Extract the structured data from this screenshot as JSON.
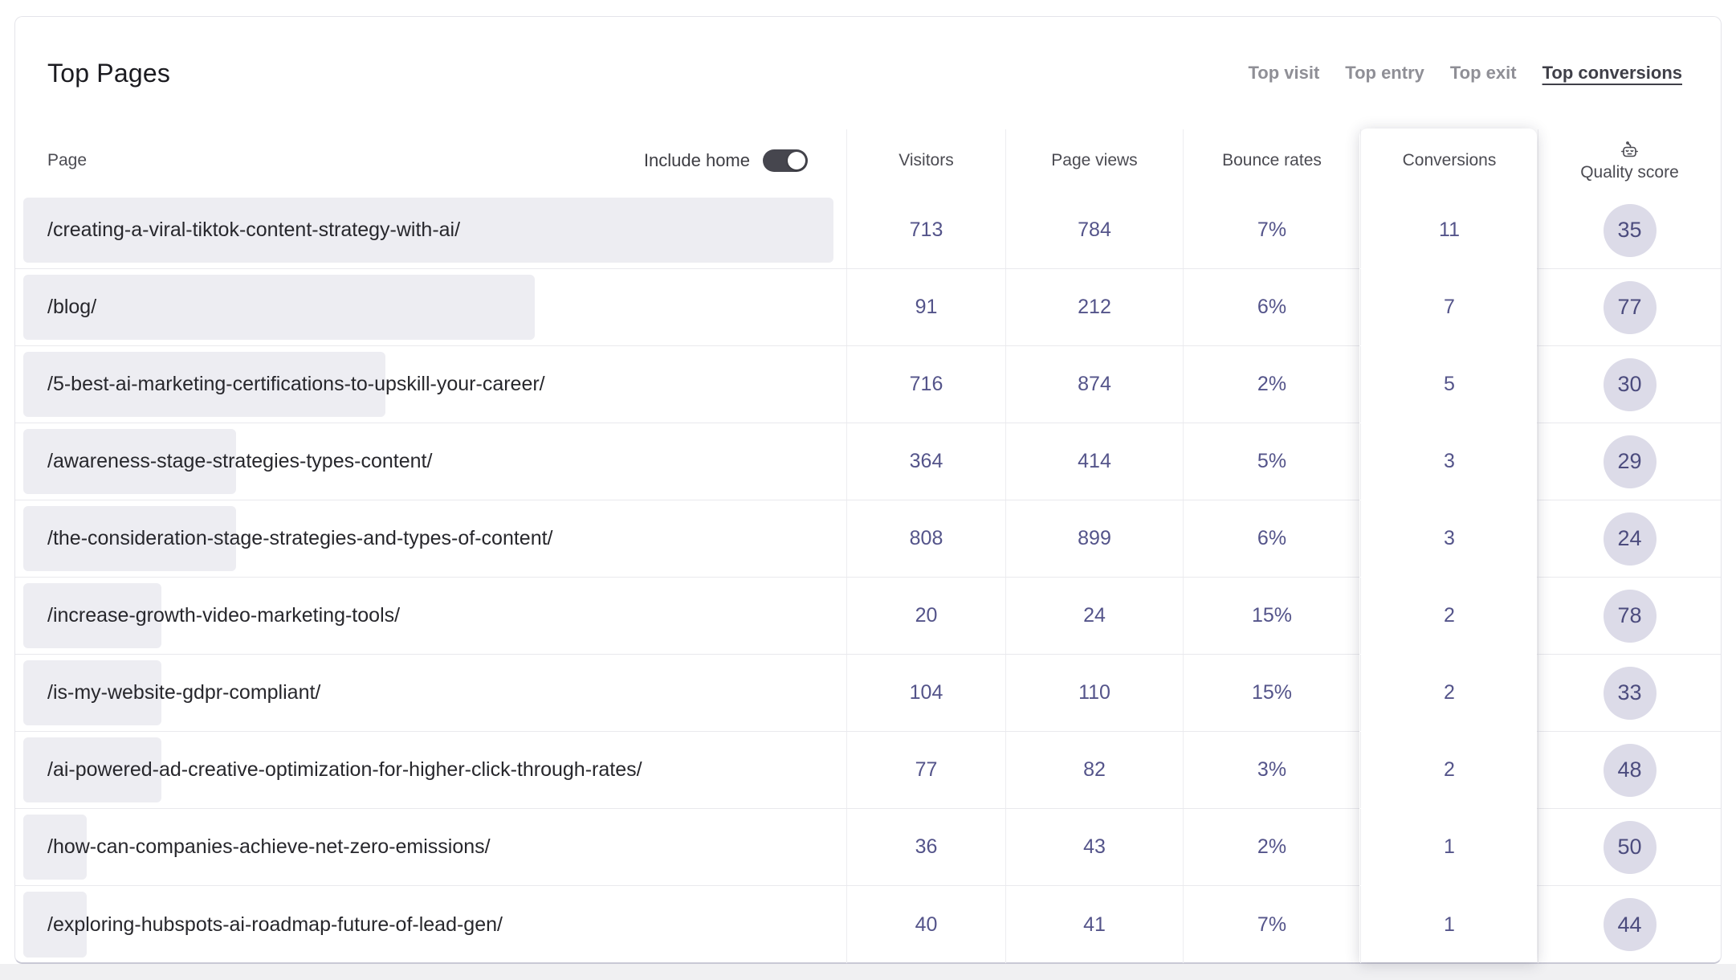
{
  "header": {
    "title": "Top Pages",
    "tabs": [
      {
        "label": "Top visit",
        "active": false
      },
      {
        "label": "Top entry",
        "active": false
      },
      {
        "label": "Top exit",
        "active": false
      },
      {
        "label": "Top conversions",
        "active": true
      }
    ]
  },
  "table": {
    "page_header": "Page",
    "include_home_label": "Include home",
    "include_home_on": true,
    "columns": [
      "Visitors",
      "Page views",
      "Bounce rates",
      "Conversions",
      "Quality score"
    ],
    "quality_icon": "robot-icon",
    "rows": [
      {
        "page": "/creating-a-viral-tiktok-content-strategy-with-ai/",
        "visitors": "713",
        "page_views": "784",
        "bounce_rate": "7%",
        "conversions": "11",
        "quality_score": "35"
      },
      {
        "page": "/blog/",
        "visitors": "91",
        "page_views": "212",
        "bounce_rate": "6%",
        "conversions": "7",
        "quality_score": "77"
      },
      {
        "page": "/5-best-ai-marketing-certifications-to-upskill-your-career/",
        "visitors": "716",
        "page_views": "874",
        "bounce_rate": "2%",
        "conversions": "5",
        "quality_score": "30"
      },
      {
        "page": "/awareness-stage-strategies-types-content/",
        "visitors": "364",
        "page_views": "414",
        "bounce_rate": "5%",
        "conversions": "3",
        "quality_score": "29"
      },
      {
        "page": "/the-consideration-stage-strategies-and-types-of-content/",
        "visitors": "808",
        "page_views": "899",
        "bounce_rate": "6%",
        "conversions": "3",
        "quality_score": "24"
      },
      {
        "page": "/increase-growth-video-marketing-tools/",
        "visitors": "20",
        "page_views": "24",
        "bounce_rate": "15%",
        "conversions": "2",
        "quality_score": "78"
      },
      {
        "page": "/is-my-website-gdpr-compliant/",
        "visitors": "104",
        "page_views": "110",
        "bounce_rate": "15%",
        "conversions": "2",
        "quality_score": "33"
      },
      {
        "page": "/ai-powered-ad-creative-optimization-for-higher-click-through-rates/",
        "visitors": "77",
        "page_views": "82",
        "bounce_rate": "3%",
        "conversions": "2",
        "quality_score": "48"
      },
      {
        "page": "/how-can-companies-achieve-net-zero-emissions/",
        "visitors": "36",
        "page_views": "43",
        "bounce_rate": "2%",
        "conversions": "1",
        "quality_score": "50"
      },
      {
        "page": "/exploring-hubspots-ai-roadmap-future-of-lead-gen/",
        "visitors": "40",
        "page_views": "41",
        "bounce_rate": "7%",
        "conversions": "1",
        "quality_score": "44"
      }
    ]
  },
  "colors": {
    "accent_indigo": "#54548a",
    "badge_bg": "#dcdbe8",
    "bar_bg": "#ededf2",
    "toggle_on": "#46464e",
    "active_tab": "#3f3f48"
  }
}
